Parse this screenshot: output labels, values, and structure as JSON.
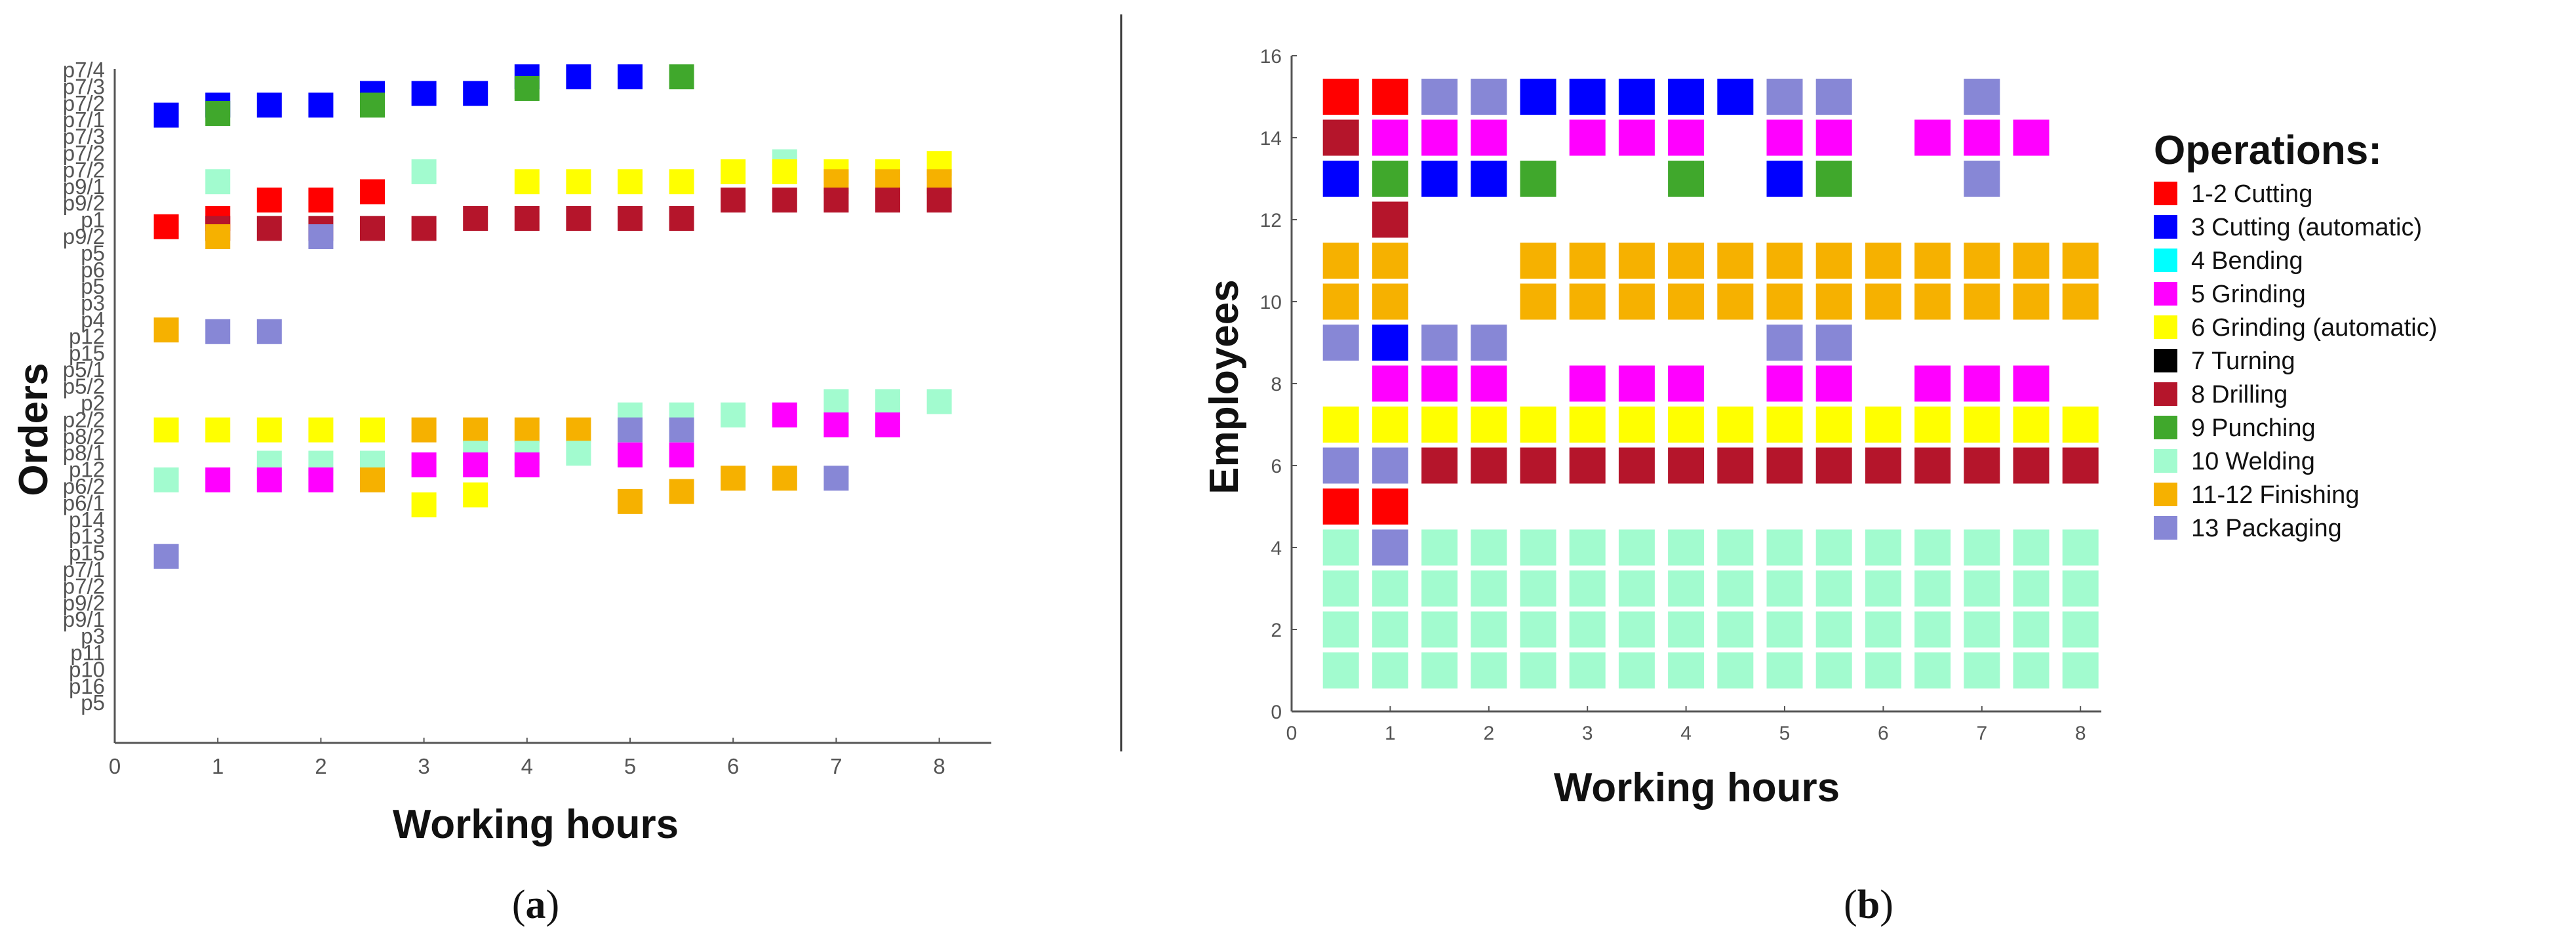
{
  "chart_data": [
    {
      "id": "a",
      "type": "scatter",
      "marker": "square",
      "caption": {
        "open": "(",
        "letter": "a",
        "close": ")"
      },
      "xlabel": "Working hours",
      "ylabel": "Orders",
      "xlim": [
        0,
        8.5
      ],
      "xticks": [
        0,
        1,
        2,
        3,
        4,
        5,
        6,
        7,
        8
      ],
      "y_categories": [
        "p7/4",
        "p7/3",
        "p7/2",
        "p7/1",
        "p7/3",
        "p7/2",
        "p7/2",
        "p9/1",
        "p9/2",
        "p1",
        "p9/2",
        "p5",
        "p6",
        "p5",
        "p3",
        "p4",
        "p12",
        "p15",
        "p5/1",
        "p5/2",
        "p2",
        "p2/2",
        "p8/2",
        "p8/1",
        "p12",
        "p6/2",
        "p6/1",
        "p14",
        "p13",
        "p15",
        "p7/1",
        "p7/2",
        "p9/2",
        "p9/1",
        "p3",
        "p11",
        "p10",
        "p16",
        "p5"
      ],
      "points": [
        {
          "x": 0.5,
          "y": 2.7,
          "op": "3"
        },
        {
          "x": 1,
          "y": 2.1,
          "op": "3"
        },
        {
          "x": 1.5,
          "y": 2.1,
          "op": "3"
        },
        {
          "x": 2,
          "y": 2.1,
          "op": "3"
        },
        {
          "x": 2.5,
          "y": 1.4,
          "op": "3"
        },
        {
          "x": 3,
          "y": 1.4,
          "op": "3"
        },
        {
          "x": 3.5,
          "y": 1.4,
          "op": "3"
        },
        {
          "x": 4,
          "y": 0.4,
          "op": "3"
        },
        {
          "x": 4.5,
          "y": 0.4,
          "op": "3"
        },
        {
          "x": 5,
          "y": 0.4,
          "op": "3"
        },
        {
          "x": 1,
          "y": 2.6,
          "op": "9"
        },
        {
          "x": 2.5,
          "y": 2.1,
          "op": "9"
        },
        {
          "x": 4,
          "y": 1.1,
          "op": "9"
        },
        {
          "x": 5.5,
          "y": 0.4,
          "op": "9"
        },
        {
          "x": 6.5,
          "y": 5.5,
          "op": "10"
        },
        {
          "x": 1,
          "y": 6.7,
          "op": "10"
        },
        {
          "x": 3,
          "y": 6.1,
          "op": "10"
        },
        {
          "x": 6,
          "y": 6.1,
          "op": "6"
        },
        {
          "x": 6.5,
          "y": 6.1,
          "op": "6"
        },
        {
          "x": 7,
          "y": 6.1,
          "op": "6"
        },
        {
          "x": 7.5,
          "y": 6.1,
          "op": "6"
        },
        {
          "x": 8,
          "y": 5.6,
          "op": "6"
        },
        {
          "x": 4,
          "y": 6.7,
          "op": "6"
        },
        {
          "x": 4.5,
          "y": 6.7,
          "op": "6"
        },
        {
          "x": 5,
          "y": 6.7,
          "op": "6"
        },
        {
          "x": 5.5,
          "y": 6.7,
          "op": "6"
        },
        {
          "x": 7,
          "y": 6.7,
          "op": "11-12"
        },
        {
          "x": 7.5,
          "y": 6.7,
          "op": "11-12"
        },
        {
          "x": 8,
          "y": 6.7,
          "op": "11-12"
        },
        {
          "x": 2.5,
          "y": 7.3,
          "op": "1-2"
        },
        {
          "x": 1.5,
          "y": 7.8,
          "op": "1-2"
        },
        {
          "x": 2,
          "y": 7.8,
          "op": "1-2"
        },
        {
          "x": 1,
          "y": 8.9,
          "op": "1-2"
        },
        {
          "x": 0.5,
          "y": 9.4,
          "op": "1-2"
        },
        {
          "x": 6,
          "y": 7.8,
          "op": "8"
        },
        {
          "x": 6.5,
          "y": 7.8,
          "op": "8"
        },
        {
          "x": 7,
          "y": 7.8,
          "op": "8"
        },
        {
          "x": 7.5,
          "y": 7.8,
          "op": "8"
        },
        {
          "x": 8,
          "y": 7.8,
          "op": "8"
        },
        {
          "x": 3.5,
          "y": 8.9,
          "op": "8"
        },
        {
          "x": 4,
          "y": 8.9,
          "op": "8"
        },
        {
          "x": 4.5,
          "y": 8.9,
          "op": "8"
        },
        {
          "x": 5,
          "y": 8.9,
          "op": "8"
        },
        {
          "x": 5.5,
          "y": 8.9,
          "op": "8"
        },
        {
          "x": 1,
          "y": 9.5,
          "op": "8"
        },
        {
          "x": 1.5,
          "y": 9.5,
          "op": "8"
        },
        {
          "x": 2,
          "y": 9.5,
          "op": "8"
        },
        {
          "x": 2.5,
          "y": 9.5,
          "op": "8"
        },
        {
          "x": 3,
          "y": 9.5,
          "op": "8"
        },
        {
          "x": 1,
          "y": 10.0,
          "op": "11-12"
        },
        {
          "x": 2,
          "y": 10.0,
          "op": "13"
        },
        {
          "x": 0.5,
          "y": 15.6,
          "op": "11-12"
        },
        {
          "x": 1,
          "y": 15.7,
          "op": "13"
        },
        {
          "x": 1.5,
          "y": 15.7,
          "op": "13"
        },
        {
          "x": 5,
          "y": 20.7,
          "op": "10"
        },
        {
          "x": 5.5,
          "y": 20.7,
          "op": "10"
        },
        {
          "x": 6,
          "y": 20.7,
          "op": "10"
        },
        {
          "x": 7,
          "y": 19.9,
          "op": "10"
        },
        {
          "x": 7.5,
          "y": 19.9,
          "op": "10"
        },
        {
          "x": 8,
          "y": 19.9,
          "op": "10"
        },
        {
          "x": 6.5,
          "y": 20.7,
          "op": "5"
        },
        {
          "x": 7,
          "y": 21.3,
          "op": "5"
        },
        {
          "x": 7.5,
          "y": 21.3,
          "op": "5"
        },
        {
          "x": 0.5,
          "y": 21.6,
          "op": "6"
        },
        {
          "x": 1,
          "y": 21.6,
          "op": "6"
        },
        {
          "x": 1.5,
          "y": 21.6,
          "op": "6"
        },
        {
          "x": 2,
          "y": 21.6,
          "op": "6"
        },
        {
          "x": 2.5,
          "y": 21.6,
          "op": "6"
        },
        {
          "x": 3,
          "y": 21.6,
          "op": "11-12"
        },
        {
          "x": 3.5,
          "y": 21.6,
          "op": "11-12"
        },
        {
          "x": 4,
          "y": 21.6,
          "op": "11-12"
        },
        {
          "x": 4.5,
          "y": 21.6,
          "op": "11-12"
        },
        {
          "x": 5,
          "y": 21.6,
          "op": "13"
        },
        {
          "x": 5.5,
          "y": 21.6,
          "op": "13"
        },
        {
          "x": 3.5,
          "y": 23.0,
          "op": "10"
        },
        {
          "x": 4,
          "y": 23.0,
          "op": "10"
        },
        {
          "x": 4.5,
          "y": 23.0,
          "op": "10"
        },
        {
          "x": 1.5,
          "y": 23.6,
          "op": "10"
        },
        {
          "x": 2,
          "y": 23.6,
          "op": "10"
        },
        {
          "x": 2.5,
          "y": 23.6,
          "op": "10"
        },
        {
          "x": 0.5,
          "y": 24.6,
          "op": "10"
        },
        {
          "x": 3,
          "y": 23.7,
          "op": "5"
        },
        {
          "x": 3.5,
          "y": 23.7,
          "op": "5"
        },
        {
          "x": 4,
          "y": 23.7,
          "op": "5"
        },
        {
          "x": 5,
          "y": 23.1,
          "op": "5"
        },
        {
          "x": 5.5,
          "y": 23.1,
          "op": "5"
        },
        {
          "x": 1,
          "y": 24.6,
          "op": "5"
        },
        {
          "x": 1.5,
          "y": 24.6,
          "op": "5"
        },
        {
          "x": 2,
          "y": 24.6,
          "op": "5"
        },
        {
          "x": 2.5,
          "y": 24.6,
          "op": "11-12"
        },
        {
          "x": 6,
          "y": 24.5,
          "op": "11-12"
        },
        {
          "x": 6.5,
          "y": 24.5,
          "op": "11-12"
        },
        {
          "x": 7,
          "y": 24.5,
          "op": "13"
        },
        {
          "x": 5.5,
          "y": 25.3,
          "op": "11-12"
        },
        {
          "x": 5,
          "y": 25.9,
          "op": "11-12"
        },
        {
          "x": 3.5,
          "y": 25.5,
          "op": "6"
        },
        {
          "x": 3,
          "y": 26.1,
          "op": "6"
        },
        {
          "x": 0.5,
          "y": 29.2,
          "op": "13"
        }
      ]
    },
    {
      "id": "b",
      "type": "scatter",
      "marker": "square",
      "caption": {
        "open": "(",
        "letter": "b",
        "close": ")"
      },
      "xlabel": "Working hours",
      "ylabel": "Employees",
      "xlim": [
        0,
        8.25
      ],
      "ylim": [
        0,
        16
      ],
      "xticks": [
        0,
        1,
        2,
        3,
        4,
        5,
        6,
        7,
        8
      ],
      "yticks": [
        0,
        2,
        4,
        6,
        8,
        10,
        12,
        14,
        16
      ],
      "legend": {
        "title": "Operations:",
        "placement": "right",
        "items": [
          {
            "op": "1-2",
            "num": "1-2",
            "label": "Cutting",
            "color": "#ff0000"
          },
          {
            "op": "3",
            "num": "3",
            "label": "Cutting (automatic)",
            "color": "#0000ff"
          },
          {
            "op": "4",
            "num": "4",
            "label": "Bending",
            "color": "#00ffff"
          },
          {
            "op": "5",
            "num": "5",
            "label": "Grinding",
            "color": "#ff00ff"
          },
          {
            "op": "6",
            "num": "6",
            "label": "Grinding (automatic)",
            "color": "#ffff00"
          },
          {
            "op": "7",
            "num": "7",
            "label": "Turning",
            "color": "#000000"
          },
          {
            "op": "8",
            "num": "8",
            "label": "Drilling",
            "color": "#b5152b"
          },
          {
            "op": "9",
            "num": "9",
            "label": "Punching",
            "color": "#40a82c"
          },
          {
            "op": "10",
            "num": "10",
            "label": "Welding",
            "color": "#a2fbcf"
          },
          {
            "op": "11-12",
            "num": "11-12",
            "label": "Finishing",
            "color": "#f6b100"
          },
          {
            "op": "13",
            "num": "13",
            "label": "Packaging",
            "color": "#8787d6"
          }
        ]
      },
      "rows": [
        {
          "y": 15,
          "cells": [
            "1-2",
            "1-2",
            "13",
            "13",
            "3",
            "3",
            "3",
            "3",
            "3",
            "13",
            "13",
            null,
            null,
            "13",
            null,
            null
          ]
        },
        {
          "y": 14,
          "cells": [
            "8",
            "5",
            "5",
            "5",
            null,
            "5",
            "5",
            "5",
            null,
            "5",
            "5",
            null,
            "5",
            "5",
            "5",
            null
          ]
        },
        {
          "y": 13,
          "cells": [
            "3",
            "9",
            "3",
            "3",
            "9",
            null,
            null,
            "9",
            null,
            "3",
            "9",
            null,
            null,
            "13",
            null,
            null
          ]
        },
        {
          "y": 12,
          "cells": [
            null,
            "8",
            null,
            null,
            null,
            null,
            null,
            null,
            null,
            null,
            null,
            null,
            null,
            null,
            null,
            null
          ]
        },
        {
          "y": 11,
          "cells": [
            "11-12",
            "11-12",
            null,
            null,
            "11-12",
            "11-12",
            "11-12",
            "11-12",
            "11-12",
            "11-12",
            "11-12",
            "11-12",
            "11-12",
            "11-12",
            "11-12",
            "11-12"
          ]
        },
        {
          "y": 10,
          "cells": [
            "11-12",
            "11-12",
            null,
            null,
            "11-12",
            "11-12",
            "11-12",
            "11-12",
            "11-12",
            "11-12",
            "11-12",
            "11-12",
            "11-12",
            "11-12",
            "11-12",
            "11-12"
          ]
        },
        {
          "y": 9,
          "cells": [
            "13",
            "3",
            "13",
            "13",
            null,
            null,
            null,
            null,
            null,
            "13",
            "13",
            null,
            null,
            null,
            null,
            null
          ]
        },
        {
          "y": 8,
          "cells": [
            null,
            "5",
            "5",
            "5",
            null,
            "5",
            "5",
            "5",
            null,
            "5",
            "5",
            null,
            "5",
            "5",
            "5",
            null
          ]
        },
        {
          "y": 7,
          "cells": [
            "6",
            "6",
            "6",
            "6",
            "6",
            "6",
            "6",
            "6",
            "6",
            "6",
            "6",
            "6",
            "6",
            "6",
            "6",
            "6"
          ]
        },
        {
          "y": 6,
          "cells": [
            "13",
            "13",
            "8",
            "8",
            "8",
            "8",
            "8",
            "8",
            "8",
            "8",
            "8",
            "8",
            "8",
            "8",
            "8",
            "8"
          ]
        },
        {
          "y": 5,
          "cells": [
            "1-2",
            "1-2",
            null,
            null,
            null,
            null,
            null,
            null,
            null,
            null,
            null,
            null,
            null,
            null,
            null,
            null
          ]
        },
        {
          "y": 4,
          "cells": [
            "10",
            "13",
            "10",
            "10",
            "10",
            "10",
            "10",
            "10",
            "10",
            "10",
            "10",
            "10",
            "10",
            "10",
            "10",
            "10"
          ]
        },
        {
          "y": 3,
          "cells": [
            "10",
            "10",
            "10",
            "10",
            "10",
            "10",
            "10",
            "10",
            "10",
            "10",
            "10",
            "10",
            "10",
            "10",
            "10",
            "10"
          ]
        },
        {
          "y": 2,
          "cells": [
            "10",
            "10",
            "10",
            "10",
            "10",
            "10",
            "10",
            "10",
            "10",
            "10",
            "10",
            "10",
            "10",
            "10",
            "10",
            "10"
          ]
        },
        {
          "y": 1,
          "cells": [
            "10",
            "10",
            "10",
            "10",
            "10",
            "10",
            "10",
            "10",
            "10",
            "10",
            "10",
            "10",
            "10",
            "10",
            "10",
            "10"
          ]
        }
      ]
    }
  ],
  "colors": {
    "1-2": "#ff0000",
    "3": "#0000ff",
    "4": "#00ffff",
    "5": "#ff00ff",
    "6": "#ffff00",
    "7": "#000000",
    "8": "#b5152b",
    "9": "#40a82c",
    "10": "#a2fbcf",
    "11-12": "#f6b100",
    "13": "#8787d6"
  }
}
